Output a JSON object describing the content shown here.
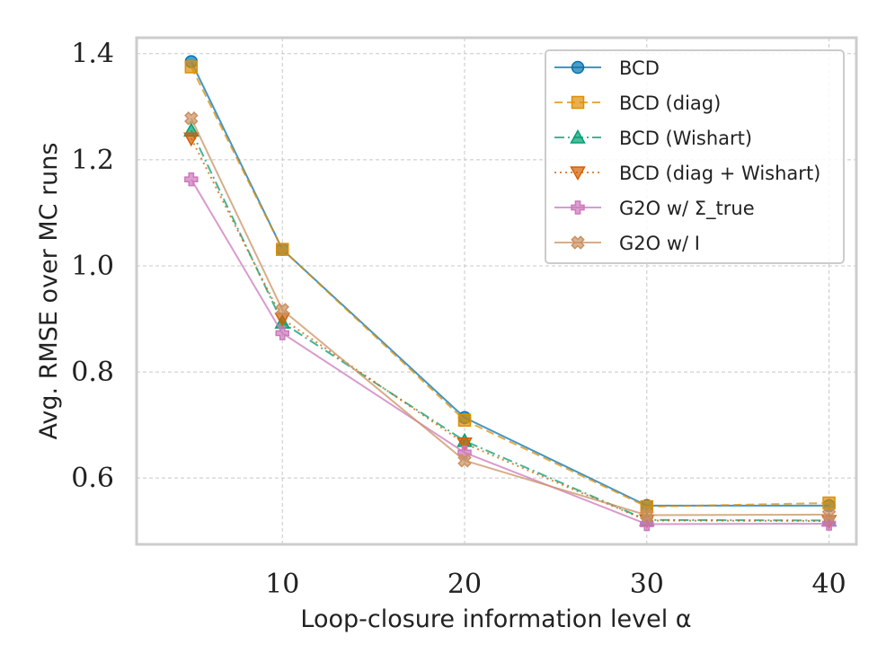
{
  "chart_data": {
    "type": "line",
    "title": "",
    "xlabel": "Loop-closure information level α",
    "ylabel": "Avg. RMSE over MC runs",
    "x": [
      5,
      10,
      20,
      30,
      40
    ],
    "xlim": [
      2,
      41.5
    ],
    "ylim": [
      0.475,
      1.43
    ],
    "xticks": [
      10,
      20,
      30,
      40
    ],
    "xtick_labels": [
      "10",
      "20",
      "30",
      "40"
    ],
    "yticks": [
      0.6,
      0.8,
      1.0,
      1.2,
      1.4
    ],
    "ytick_labels": [
      "0.6",
      "0.8",
      "1.0",
      "1.2",
      "1.4"
    ],
    "grid": true,
    "legend_position": "top-right",
    "series": [
      {
        "name": "BCD",
        "values": [
          1.385,
          1.031,
          0.714,
          0.548,
          0.548
        ],
        "color": "#0173b2",
        "marker": "circle",
        "dash": "solid"
      },
      {
        "name": "BCD (diag)",
        "values": [
          1.375,
          1.031,
          0.709,
          0.546,
          0.553
        ],
        "color": "#de8f05",
        "marker": "square",
        "dash": "dashed"
      },
      {
        "name": "BCD (Wishart)",
        "values": [
          1.255,
          0.893,
          0.67,
          0.521,
          0.52
        ],
        "color": "#029e73",
        "marker": "triangle-up",
        "dash": "dashdot"
      },
      {
        "name": "BCD (diag + Wishart)",
        "values": [
          1.24,
          0.9,
          0.665,
          0.52,
          0.519
        ],
        "color": "#d55e00",
        "marker": "triangle-down",
        "dash": "dotted"
      },
      {
        "name": "G2O w/ Σ_true",
        "values": [
          1.163,
          0.873,
          0.648,
          0.513,
          0.514
        ],
        "color": "#cc78bc",
        "marker": "plus",
        "dash": "solid"
      },
      {
        "name": "G2O w/ I",
        "values": [
          1.278,
          0.917,
          0.633,
          0.53,
          0.531
        ],
        "color": "#ca9161",
        "marker": "x",
        "dash": "solid"
      }
    ]
  }
}
